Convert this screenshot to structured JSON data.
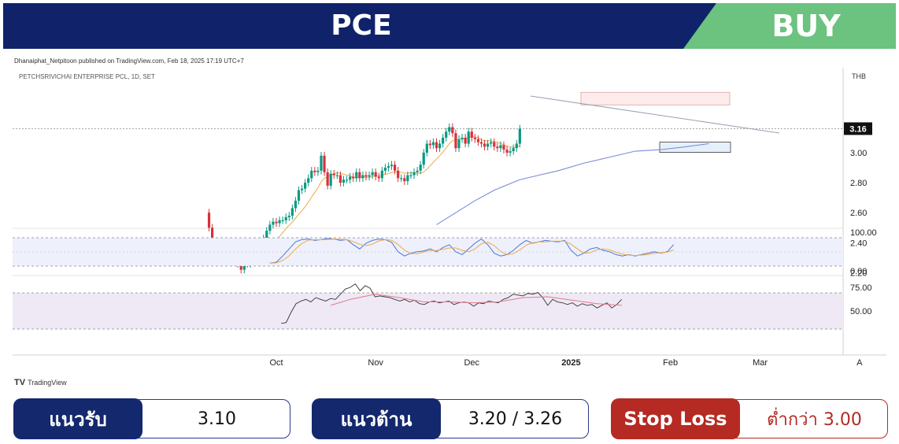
{
  "header": {
    "ticker": "PCE",
    "signal": "BUY",
    "signal_color": "#6cc27f",
    "bar_color": "#10236a"
  },
  "publisher": "Dhanaiphat_Netpitoon published on TradingView.com, Feb 18, 2025 17:19 UTC+7",
  "branding": "TradingView",
  "levels": {
    "support": {
      "label": "แนวรับ",
      "value": "3.10"
    },
    "resistance": {
      "label": "แนวต้าน",
      "value": "3.20 / 3.26"
    },
    "stop_loss": {
      "label": "Stop Loss",
      "value": "ต่ำกว่า 3.00"
    }
  },
  "chart_data": {
    "type": "candlestick",
    "symbol_line": "PETCHSRIVICHAI ENTERPRISE PCL, 1D, SET",
    "currency": "THB",
    "last_price": "3.16",
    "price_ticks": [
      "3.00",
      "2.80",
      "2.60",
      "2.40",
      "2.20"
    ],
    "price_ylim": [
      2.15,
      3.33
    ],
    "osc1_ticks": [
      "100.00",
      "0.00"
    ],
    "osc2_ticks": [
      "75.00",
      "50.00"
    ],
    "x_ticks": [
      "Oct",
      "Nov",
      "Dec",
      "2025",
      "Feb",
      "Mar",
      "A"
    ],
    "x_tick_days": [
      0,
      31,
      61,
      92,
      123,
      151,
      182
    ],
    "closes": [
      [
        -21,
        2.5
      ],
      [
        -20,
        2.36
      ],
      [
        -19,
        2.31
      ],
      [
        -18,
        2.28
      ],
      [
        -17,
        2.29
      ],
      [
        -16,
        2.28
      ],
      [
        -15,
        2.29
      ],
      [
        -14,
        2.28
      ],
      [
        -13,
        2.27
      ],
      [
        -12,
        2.26
      ],
      [
        -11,
        2.22
      ],
      [
        -10,
        2.27
      ],
      [
        -9,
        2.26
      ],
      [
        -8,
        2.3
      ],
      [
        -7,
        2.3
      ],
      [
        -6,
        2.36
      ],
      [
        -5,
        2.41
      ],
      [
        -4,
        2.43
      ],
      [
        -3,
        2.48
      ],
      [
        -2,
        2.52
      ],
      [
        -1,
        2.54
      ],
      [
        0,
        2.53
      ],
      [
        1,
        2.55
      ],
      [
        2,
        2.55
      ],
      [
        3,
        2.57
      ],
      [
        4,
        2.58
      ],
      [
        5,
        2.63
      ],
      [
        6,
        2.68
      ],
      [
        7,
        2.75
      ],
      [
        8,
        2.76
      ],
      [
        9,
        2.8
      ],
      [
        10,
        2.83
      ],
      [
        11,
        2.88
      ],
      [
        12,
        2.87
      ],
      [
        13,
        2.88
      ],
      [
        14,
        2.98
      ],
      [
        15,
        2.87
      ],
      [
        16,
        2.78
      ],
      [
        17,
        2.86
      ],
      [
        18,
        2.85
      ],
      [
        19,
        2.85
      ],
      [
        20,
        2.8
      ],
      [
        21,
        2.82
      ],
      [
        22,
        2.82
      ],
      [
        23,
        2.84
      ],
      [
        24,
        2.83
      ],
      [
        25,
        2.87
      ],
      [
        26,
        2.83
      ],
      [
        27,
        2.85
      ],
      [
        28,
        2.84
      ],
      [
        29,
        2.85
      ],
      [
        30,
        2.87
      ],
      [
        31,
        2.84
      ],
      [
        32,
        2.83
      ],
      [
        33,
        2.88
      ],
      [
        34,
        2.9
      ],
      [
        35,
        2.91
      ],
      [
        36,
        2.92
      ],
      [
        37,
        2.88
      ],
      [
        38,
        2.83
      ],
      [
        39,
        2.83
      ],
      [
        40,
        2.81
      ],
      [
        41,
        2.85
      ],
      [
        42,
        2.85
      ],
      [
        43,
        2.87
      ],
      [
        44,
        2.88
      ],
      [
        45,
        2.92
      ],
      [
        46,
        3.0
      ],
      [
        47,
        3.06
      ],
      [
        48,
        3.05
      ],
      [
        49,
        3.07
      ],
      [
        50,
        3.03
      ],
      [
        51,
        3.06
      ],
      [
        52,
        3.1
      ],
      [
        53,
        3.14
      ],
      [
        54,
        3.17
      ],
      [
        55,
        3.13
      ],
      [
        56,
        3.03
      ],
      [
        57,
        3.09
      ],
      [
        58,
        3.1
      ],
      [
        59,
        3.06
      ],
      [
        60,
        3.14
      ],
      [
        61,
        3.1
      ],
      [
        62,
        3.09
      ],
      [
        63,
        3.07
      ],
      [
        64,
        3.06
      ],
      [
        65,
        3.04
      ],
      [
        66,
        3.06
      ],
      [
        67,
        3.07
      ],
      [
        68,
        3.04
      ],
      [
        69,
        3.03
      ],
      [
        70,
        3.05
      ],
      [
        71,
        3.02
      ],
      [
        72,
        3.0
      ],
      [
        73,
        3.01
      ],
      [
        74,
        3.03
      ],
      [
        75,
        3.06
      ],
      [
        76,
        3.16
      ]
    ],
    "resistance_zone_price": [
      3.26,
      3.36
    ],
    "support_zone_price": [
      2.95,
      3.04
    ]
  }
}
